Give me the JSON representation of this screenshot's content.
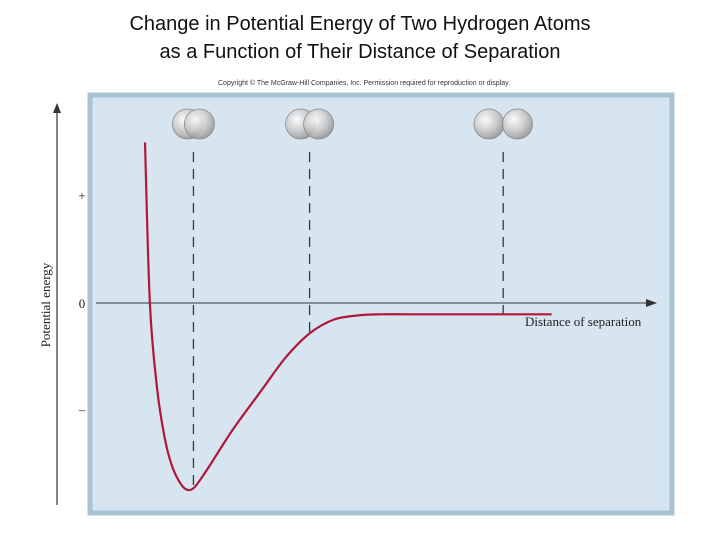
{
  "slide": {
    "title_line1": "Change in Potential Energy of Two Hydrogen Atoms",
    "title_line2": "as a Function of Their Distance of Separation",
    "copyright": "Copyright © The McGraw-Hill Companies, Inc. Permission required for reproduction or display."
  },
  "chart_data": {
    "type": "line",
    "title": "",
    "xlabel": "Distance of separation",
    "ylabel": "Potential energy",
    "y_ticks": [
      {
        "label": "+",
        "value": 1
      },
      {
        "label": "0",
        "value": 0
      },
      {
        "label": "–",
        "value": -1
      }
    ],
    "ylim": [
      -1.75,
      1.85
    ],
    "xlim": [
      0,
      10
    ],
    "series": [
      {
        "color": "#b0173a",
        "x": [
          0.6,
          0.7,
          0.85,
          1.0,
          1.15,
          1.3,
          1.45,
          1.6,
          1.8,
          2.0,
          2.25,
          2.5,
          3.0,
          3.5,
          4.0,
          4.5,
          5.0,
          5.5,
          6.0,
          7.0,
          8.0,
          9.0
        ],
        "y": [
          1.62,
          0.1,
          -0.7,
          -1.15,
          -1.42,
          -1.57,
          -1.65,
          -1.64,
          -1.52,
          -1.38,
          -1.2,
          -1.03,
          -0.72,
          -0.41,
          -0.18,
          -0.05,
          -0.01,
          0,
          0,
          0,
          0,
          0
        ]
      }
    ],
    "reference_lines": [
      {
        "x": 1.6,
        "state": "overlap"
      },
      {
        "x": 4.0,
        "state": "partial"
      },
      {
        "x": 8.0,
        "state": "separate"
      }
    ],
    "colors": {
      "panel_fill": "#d7e5f0",
      "panel_border": "#a9c3d6",
      "curve": "#b0173a",
      "atom": "#c8c8c8"
    }
  }
}
